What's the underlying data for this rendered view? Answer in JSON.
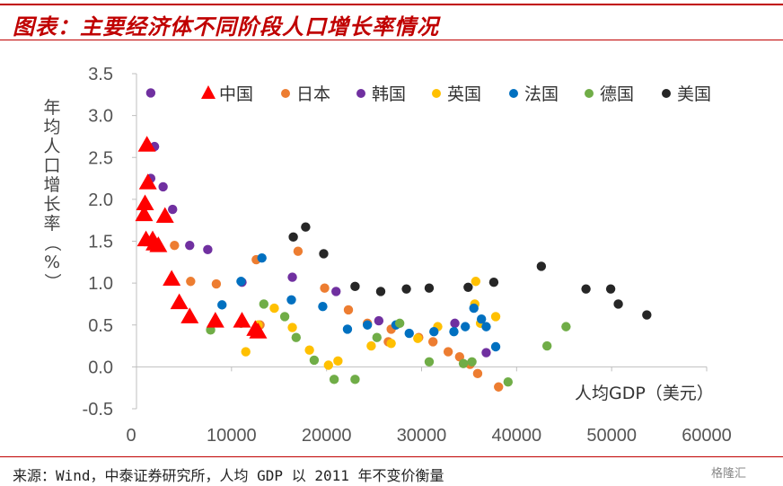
{
  "header": {
    "title": "图表：主要经济体不同阶段人口增长率情况"
  },
  "footer": {
    "source": "来源：Wind，中泰证券研究所，人均 GDP 以 2011 年不变价衡量",
    "watermark": "格隆汇"
  },
  "chart_data": {
    "type": "scatter",
    "xlabel": "人均GDP（美元）",
    "ylabel": "年均人口增长率（%）",
    "xlim": [
      0,
      60000
    ],
    "ylim": [
      -0.5,
      3.5
    ],
    "x_ticks": [
      "0",
      "10000",
      "20000",
      "30000",
      "40000",
      "50000",
      "60000"
    ],
    "y_ticks": [
      "3.5",
      "3.0",
      "2.5",
      "2.0",
      "1.5",
      "1.0",
      "0.5",
      "0.0",
      "-0.5"
    ],
    "legend_position": "top",
    "series": [
      {
        "name": "中国",
        "marker": "triangle",
        "color": "#ff0000",
        "points": [
          [
            1100,
            2.65
          ],
          [
            1200,
            2.2
          ],
          [
            900,
            1.95
          ],
          [
            800,
            1.82
          ],
          [
            1000,
            1.52
          ],
          [
            1700,
            1.52
          ],
          [
            1900,
            1.47
          ],
          [
            2300,
            1.45
          ],
          [
            3000,
            1.8
          ],
          [
            3700,
            1.05
          ],
          [
            4500,
            0.77
          ],
          [
            5600,
            0.6
          ],
          [
            8300,
            0.55
          ],
          [
            11100,
            0.55
          ],
          [
            12500,
            0.45
          ],
          [
            12800,
            0.42
          ]
        ]
      },
      {
        "name": "日本",
        "marker": "circle",
        "color": "#ed7d31",
        "points": [
          [
            4000,
            1.45
          ],
          [
            5700,
            1.02
          ],
          [
            8400,
            0.99
          ],
          [
            12600,
            1.28
          ],
          [
            13000,
            0.5
          ],
          [
            17000,
            1.38
          ],
          [
            19800,
            0.94
          ],
          [
            22300,
            0.68
          ],
          [
            24300,
            0.52
          ],
          [
            26800,
            0.45
          ],
          [
            26500,
            0.3
          ],
          [
            29700,
            0.35
          ],
          [
            31200,
            0.3
          ],
          [
            32800,
            0.18
          ],
          [
            34000,
            0.12
          ],
          [
            35100,
            0.03
          ],
          [
            35900,
            -0.08
          ],
          [
            38100,
            -0.24
          ]
        ]
      },
      {
        "name": "韩国",
        "marker": "circle",
        "color": "#7030a0",
        "points": [
          [
            1500,
            3.27
          ],
          [
            1900,
            2.63
          ],
          [
            1500,
            2.25
          ],
          [
            2800,
            2.15
          ],
          [
            3800,
            1.88
          ],
          [
            5600,
            1.45
          ],
          [
            7500,
            1.4
          ],
          [
            11100,
            1.01
          ],
          [
            16400,
            1.07
          ],
          [
            21000,
            0.9
          ],
          [
            25500,
            0.55
          ],
          [
            33500,
            0.52
          ],
          [
            36800,
            0.17
          ]
        ]
      },
      {
        "name": "英国",
        "marker": "circle",
        "color": "#ffc000",
        "points": [
          [
            11500,
            0.18
          ],
          [
            12800,
            0.5
          ],
          [
            14500,
            0.7
          ],
          [
            16400,
            0.47
          ],
          [
            18200,
            0.2
          ],
          [
            20200,
            0.02
          ],
          [
            21200,
            0.07
          ],
          [
            24700,
            0.25
          ],
          [
            26800,
            0.28
          ],
          [
            29600,
            0.34
          ],
          [
            31700,
            0.48
          ],
          [
            35700,
            1.02
          ],
          [
            35600,
            0.75
          ],
          [
            36200,
            0.52
          ],
          [
            37800,
            0.6
          ]
        ]
      },
      {
        "name": "法国",
        "marker": "circle",
        "color": "#0070c0",
        "points": [
          [
            9000,
            0.74
          ],
          [
            11000,
            1.02
          ],
          [
            13200,
            1.3
          ],
          [
            16300,
            0.8
          ],
          [
            19600,
            0.72
          ],
          [
            22200,
            0.45
          ],
          [
            24300,
            0.5
          ],
          [
            27300,
            0.5
          ],
          [
            28700,
            0.4
          ],
          [
            31300,
            0.42
          ],
          [
            33400,
            0.42
          ],
          [
            34600,
            0.48
          ],
          [
            35500,
            0.7
          ],
          [
            36300,
            0.57
          ],
          [
            36800,
            0.48
          ],
          [
            37800,
            0.24
          ]
        ]
      },
      {
        "name": "德国",
        "marker": "circle",
        "color": "#70ad47",
        "points": [
          [
            7800,
            0.44
          ],
          [
            11000,
            0.52
          ],
          [
            13400,
            0.75
          ],
          [
            15600,
            0.6
          ],
          [
            16800,
            0.35
          ],
          [
            18700,
            0.08
          ],
          [
            20800,
            -0.15
          ],
          [
            23000,
            -0.15
          ],
          [
            25300,
            0.35
          ],
          [
            27700,
            0.52
          ],
          [
            30800,
            0.06
          ],
          [
            34400,
            0.04
          ],
          [
            35300,
            0.06
          ],
          [
            39100,
            -0.18
          ],
          [
            43200,
            0.25
          ],
          [
            45200,
            0.48
          ]
        ]
      },
      {
        "name": "美国",
        "marker": "circle",
        "color": "#262626",
        "points": [
          [
            16500,
            1.55
          ],
          [
            17800,
            1.67
          ],
          [
            19700,
            1.35
          ],
          [
            23000,
            0.96
          ],
          [
            25700,
            0.9
          ],
          [
            28400,
            0.93
          ],
          [
            30800,
            0.94
          ],
          [
            34900,
            0.95
          ],
          [
            37600,
            1.01
          ],
          [
            42600,
            1.2
          ],
          [
            47300,
            0.93
          ],
          [
            49900,
            0.93
          ],
          [
            50700,
            0.75
          ],
          [
            53700,
            0.62
          ]
        ]
      }
    ]
  }
}
